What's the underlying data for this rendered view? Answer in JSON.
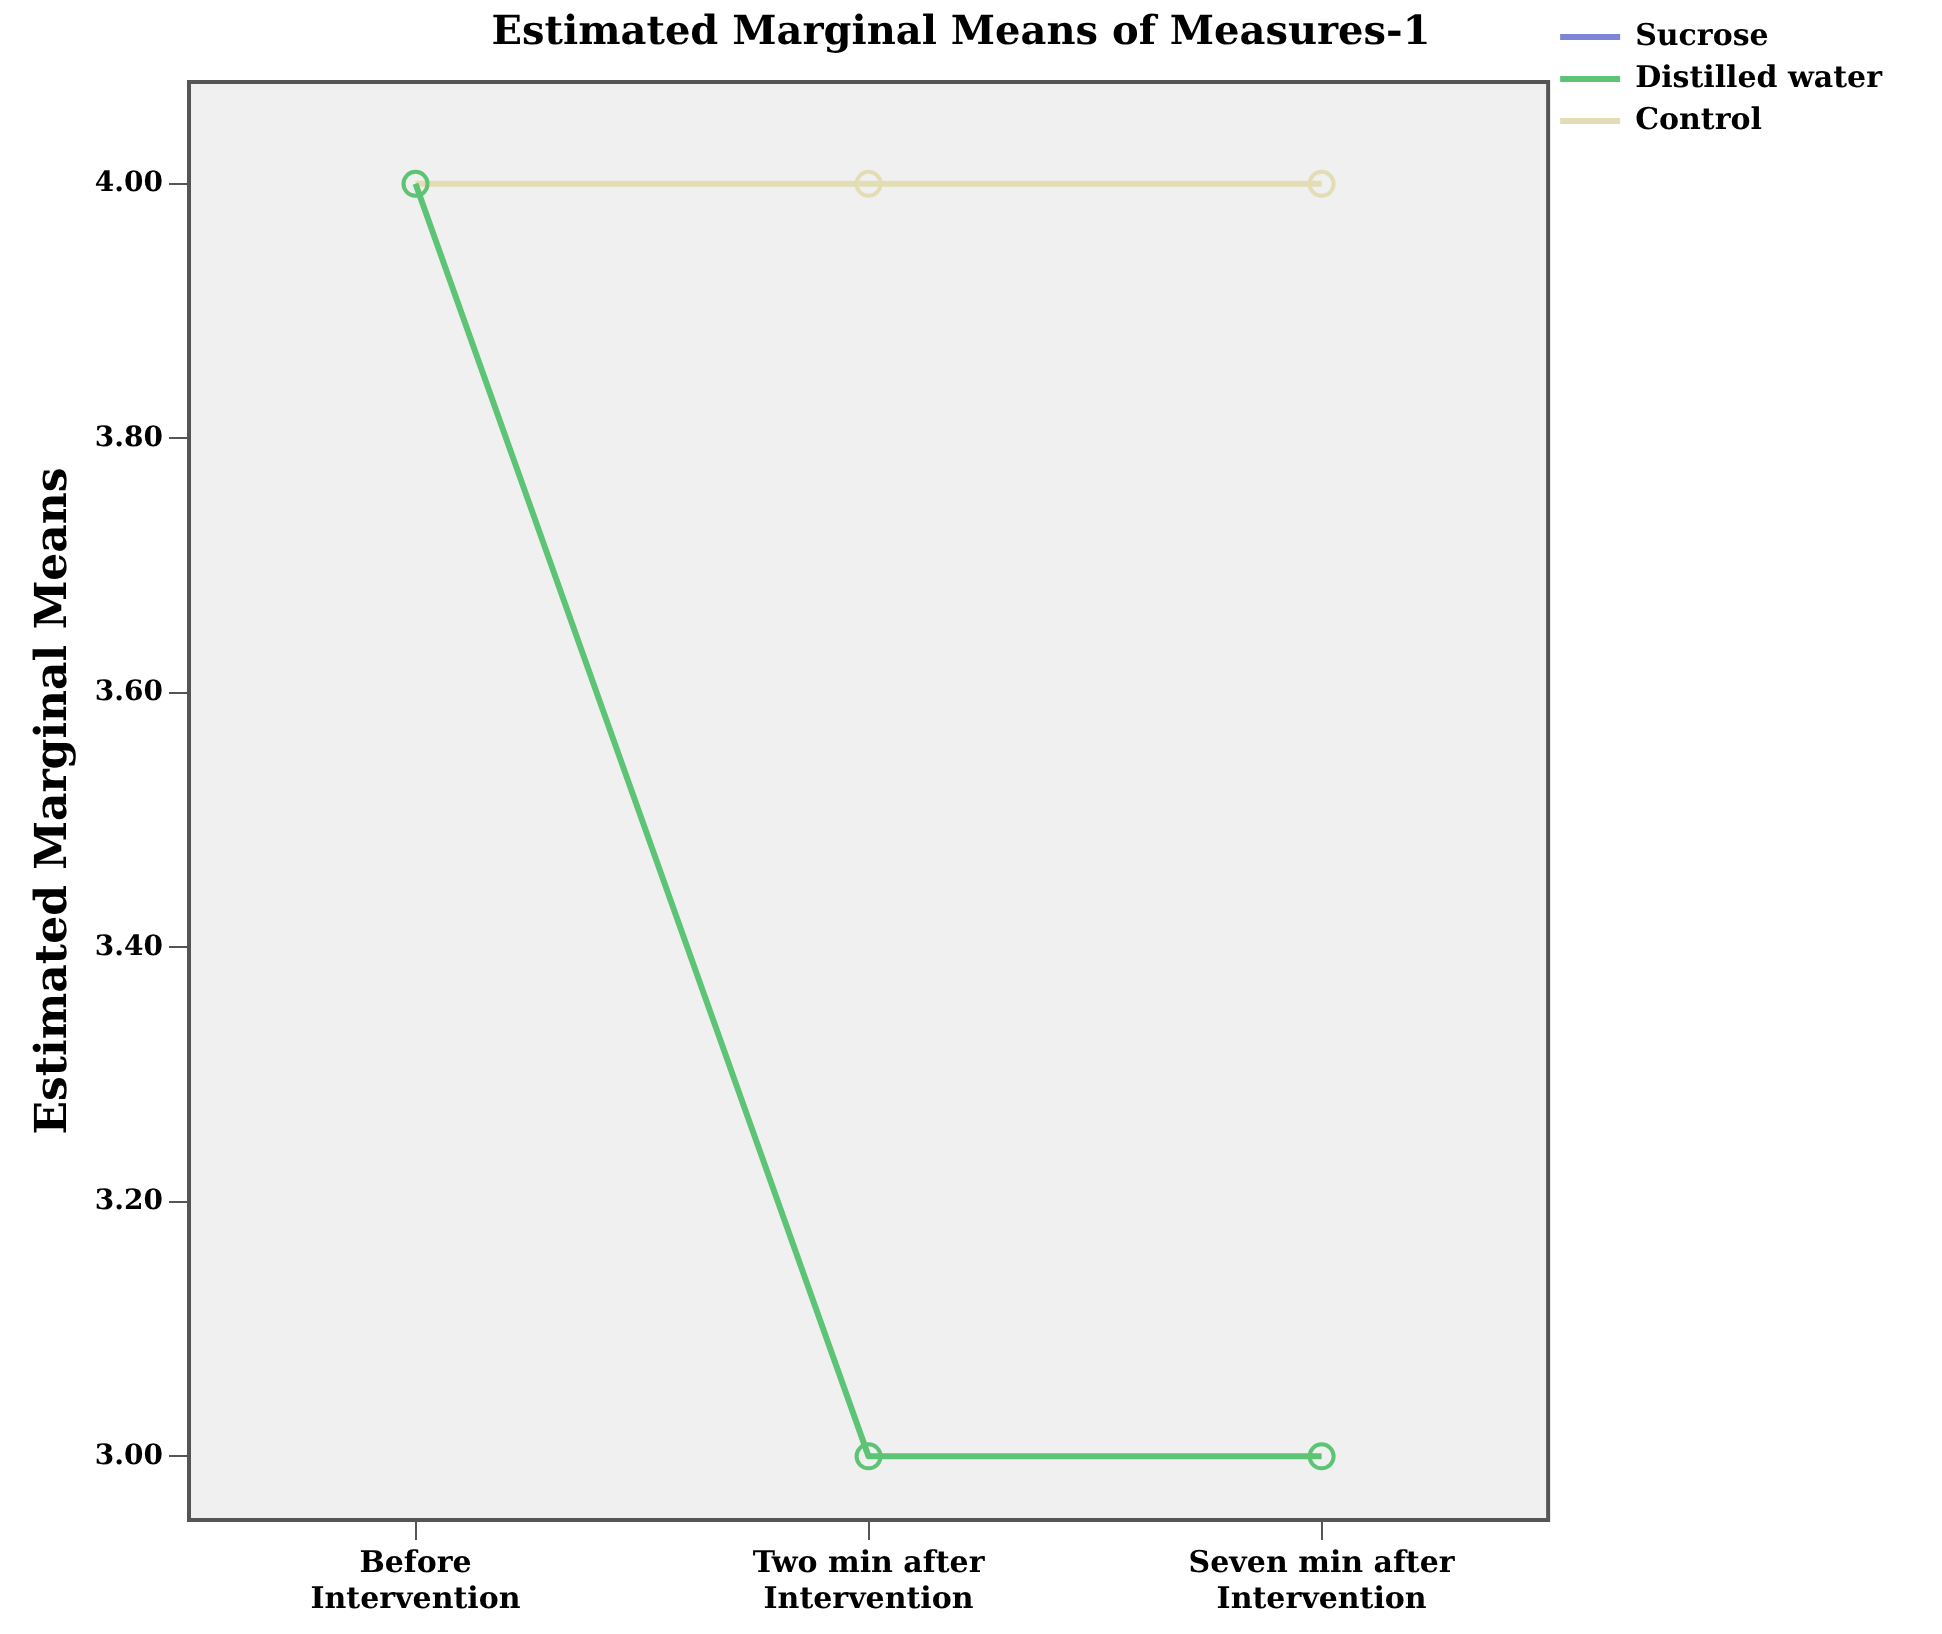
{
  "chart_data": {
    "type": "line",
    "title": "Estimated Marginal Means of Measures-1",
    "ylabel": "Estimated Marginal Means",
    "categories": [
      "Before Intervention",
      "Two min after Intervention",
      "Seven min after Intervention"
    ],
    "series": [
      {
        "name": "Sucrose",
        "color": "#7b86d6",
        "values": [
          null,
          null,
          null
        ]
      },
      {
        "name": "Distilled water",
        "color": "#5cc474",
        "values": [
          4.0,
          3.0,
          3.0
        ]
      },
      {
        "name": "Control",
        "color": "#e3ddb6",
        "values": [
          4.0,
          4.0,
          4.0
        ]
      }
    ],
    "ylim": [
      2.95,
      4.08
    ],
    "yticks": [
      {
        "value": 3,
        "label": "3.00"
      },
      {
        "value": 3.2,
        "label": "3.20"
      },
      {
        "value": 3.4,
        "label": "3.40"
      },
      {
        "value": 3.6,
        "label": "3.60"
      },
      {
        "value": 3.8,
        "label": "3.80"
      },
      {
        "value": 4,
        "label": "4.00"
      }
    ],
    "grid": false,
    "legend": "top right",
    "marker": "circle",
    "line_style": "solid"
  }
}
